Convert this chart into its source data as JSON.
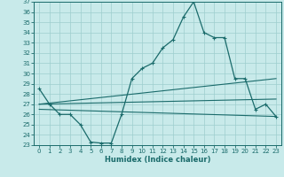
{
  "xlabel": "Humidex (Indice chaleur)",
  "bg_color": "#c8eaea",
  "grid_color": "#9ecece",
  "line_color": "#1a6b6b",
  "xlim": [
    -0.5,
    23.5
  ],
  "ylim": [
    23,
    37
  ],
  "xticks": [
    0,
    1,
    2,
    3,
    4,
    5,
    6,
    7,
    8,
    9,
    10,
    11,
    12,
    13,
    14,
    15,
    16,
    17,
    18,
    19,
    20,
    21,
    22,
    23
  ],
  "yticks": [
    23,
    24,
    25,
    26,
    27,
    28,
    29,
    30,
    31,
    32,
    33,
    34,
    35,
    36,
    37
  ],
  "line1_x": [
    0,
    1,
    2,
    3,
    4,
    5,
    6,
    7,
    8,
    9,
    10,
    11,
    12,
    13,
    14,
    15,
    16,
    17,
    18,
    19,
    20,
    21,
    22,
    23
  ],
  "line1_y": [
    28.5,
    27.0,
    26.0,
    26.0,
    25.0,
    23.3,
    23.2,
    23.2,
    26.0,
    29.5,
    30.5,
    31.0,
    32.5,
    33.3,
    35.5,
    37.0,
    34.0,
    33.5,
    33.5,
    29.5,
    29.5,
    26.5,
    27.0,
    25.8
  ],
  "line2_x": [
    0,
    23
  ],
  "line2_y": [
    27.0,
    29.5
  ],
  "line3_x": [
    0,
    23
  ],
  "line3_y": [
    27.0,
    27.5
  ],
  "line4_x": [
    0,
    23
  ],
  "line4_y": [
    26.5,
    25.8
  ],
  "marker_x": [
    0,
    1,
    2,
    3,
    4,
    5,
    6,
    7,
    8,
    9,
    10,
    11,
    12,
    13,
    14,
    15,
    16,
    17,
    18,
    19,
    20,
    21,
    22,
    23
  ],
  "marker_y": [
    28.5,
    27.0,
    26.0,
    26.0,
    25.0,
    23.3,
    23.2,
    23.2,
    26.0,
    29.5,
    30.5,
    31.0,
    32.5,
    33.3,
    35.5,
    37.0,
    34.0,
    33.5,
    33.5,
    29.5,
    29.5,
    26.5,
    27.0,
    25.8
  ]
}
